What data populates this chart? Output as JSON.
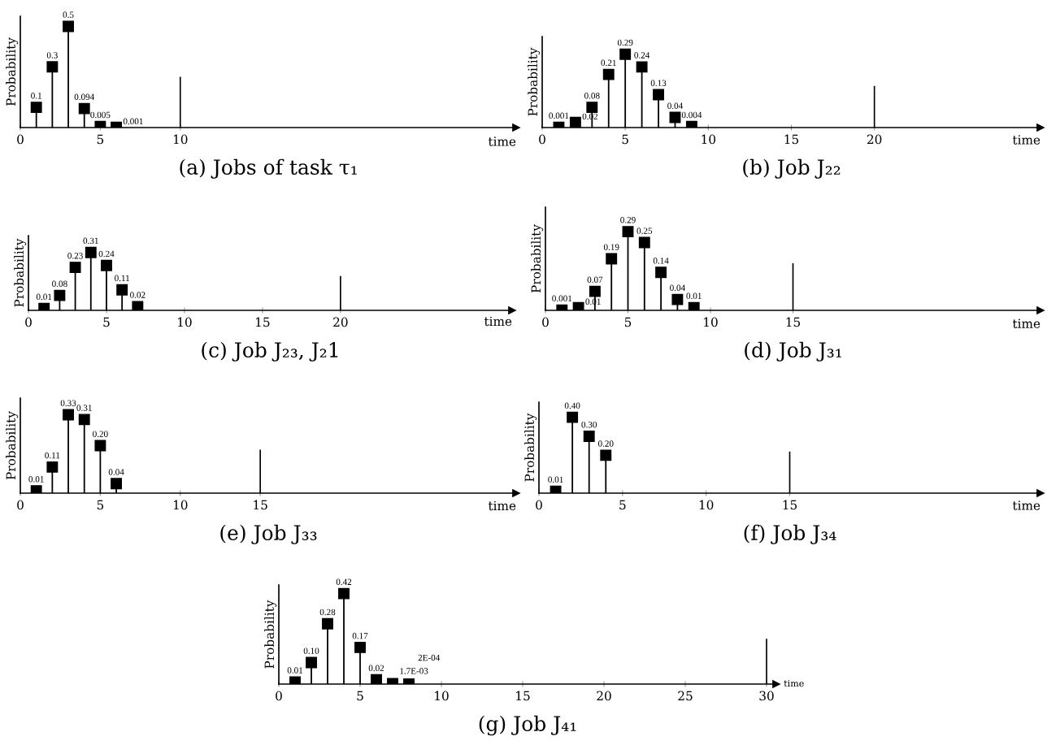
{
  "chart_data": [
    {
      "type": "lollipop",
      "title": "(a) Jobs of task τ₁",
      "xlabel": "time",
      "ylabel": "Probability",
      "x": [
        1,
        2,
        3,
        4,
        5,
        6
      ],
      "values": [
        0.1,
        0.3,
        0.5,
        0.094,
        0.005,
        0.001
      ],
      "data_labels": true,
      "color": "#000000",
      "marker": "square",
      "xlim": [
        0,
        31
      ],
      "xticks": [
        0,
        5,
        10
      ],
      "ylim": [
        0,
        0.55
      ],
      "tick_labels": "x",
      "ref_lines": [
        {
          "axis": "x",
          "value": 10,
          "label": null
        }
      ]
    },
    {
      "type": "lollipop",
      "title": "(b) Job J₂₂",
      "xlabel": "time",
      "ylabel": "Probability",
      "x": [
        1,
        2,
        3,
        4,
        5,
        6,
        7,
        8,
        9
      ],
      "values": [
        0.001,
        0.02,
        0.08,
        0.21,
        0.29,
        0.24,
        0.13,
        0.04,
        0.004
      ],
      "data_labels": true,
      "color": "#000000",
      "marker": "square",
      "xlim": [
        0,
        30
      ],
      "xticks": [
        0,
        5,
        10,
        15,
        20
      ],
      "ylim": [
        0,
        0.36
      ],
      "tick_labels": "x",
      "ref_lines": [
        {
          "axis": "x",
          "value": 20,
          "label": null
        }
      ]
    },
    {
      "type": "lollipop",
      "title": "(c) Job J₂₃, J₂1",
      "xlabel": "time",
      "ylabel": "Probability",
      "x": [
        1,
        2,
        3,
        4,
        5,
        6,
        7
      ],
      "values": [
        0.01,
        0.08,
        0.23,
        0.31,
        0.24,
        0.11,
        0.02
      ],
      "data_labels": true,
      "color": "#000000",
      "marker": "square",
      "xlim": [
        0,
        31
      ],
      "xticks": [
        0,
        5,
        10,
        15,
        20
      ],
      "ylim": [
        0,
        0.4
      ],
      "tick_labels": "x",
      "ref_lines": [
        {
          "axis": "x",
          "value": 20,
          "label": null
        }
      ]
    },
    {
      "type": "lollipop",
      "title": "(d) Job J₃₁",
      "xlabel": "time",
      "ylabel": "Probability",
      "x": [
        1,
        2,
        3,
        4,
        5,
        6,
        7,
        8,
        9
      ],
      "values": [
        0.001,
        0.01,
        0.07,
        0.19,
        0.29,
        0.25,
        0.14,
        0.04,
        0.01
      ],
      "data_labels": true,
      "color": "#000000",
      "marker": "square",
      "xlim": [
        0,
        30
      ],
      "xticks": [
        0,
        5,
        10,
        15
      ],
      "ylim": [
        0,
        0.38
      ],
      "tick_labels": "x",
      "ref_lines": [
        {
          "axis": "x",
          "value": 15,
          "label": null
        }
      ]
    },
    {
      "type": "lollipop",
      "title": "(e) Job J₃₃",
      "xlabel": "time",
      "ylabel": "Probability",
      "x": [
        1,
        2,
        3,
        4,
        5,
        6
      ],
      "values": [
        0.01,
        0.11,
        0.33,
        0.31,
        0.2,
        0.04
      ],
      "value_labels": [
        "0.01",
        "0.11",
        "0.33",
        "0.31",
        "0.20",
        "0.04"
      ],
      "color": "#000000",
      "marker": "square",
      "xlim": [
        0,
        31
      ],
      "xticks": [
        0,
        5,
        10,
        15
      ],
      "ylim": [
        0,
        0.4
      ],
      "tick_labels": "x",
      "ref_lines": [
        {
          "axis": "x",
          "value": 15,
          "label": null
        }
      ]
    },
    {
      "type": "lollipop",
      "title": "(f) Job J₃₄",
      "xlabel": "time",
      "ylabel": "Probability",
      "x": [
        1,
        2,
        3,
        4
      ],
      "values": [
        0.01,
        0.4,
        0.3,
        0.2
      ],
      "value_labels": [
        "0.01",
        "0.40",
        "0.30",
        "0.20"
      ],
      "color": "#000000",
      "marker": "square",
      "xlim": [
        0,
        30
      ],
      "xticks": [
        0,
        5,
        10,
        15
      ],
      "ylim": [
        0,
        0.48
      ],
      "tick_labels": "x",
      "ref_lines": [
        {
          "axis": "x",
          "value": 15,
          "label": null
        }
      ]
    },
    {
      "type": "lollipop",
      "title": "(g) Job J₄₁",
      "xlabel": "time",
      "ylabel": "Probability",
      "x": [
        1,
        2,
        3,
        4,
        5,
        6,
        7,
        8
      ],
      "values": [
        0.01,
        0.1,
        0.28,
        0.42,
        0.17,
        0.02,
        0.0017,
        0.0002
      ],
      "value_labels": [
        "0.01",
        "0.10",
        "0.28",
        "0.42",
        "0.17",
        "0.02",
        "1.7E-03",
        "2E-04"
      ],
      "color": "#000000",
      "marker": "square",
      "xlim": [
        0,
        30.6
      ],
      "xticks": [
        0,
        5,
        10,
        15,
        20,
        25,
        30
      ],
      "ylim": [
        0,
        0.46
      ],
      "tick_labels": "x",
      "ref_lines": [
        {
          "axis": "x",
          "value": 30,
          "label": null
        }
      ]
    }
  ]
}
